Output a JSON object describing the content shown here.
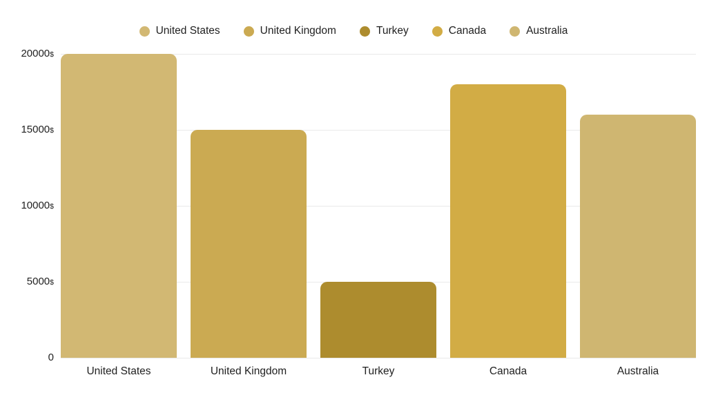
{
  "chart_data": {
    "type": "bar",
    "categories": [
      "United States",
      "United Kingdom",
      "Turkey",
      "Canada",
      "Australia"
    ],
    "values": [
      20000,
      15000,
      5000,
      18000,
      16000
    ],
    "colors": [
      "#d2b873",
      "#cbaa52",
      "#ad8c2e",
      "#d2ac45",
      "#cfb671"
    ],
    "title": "",
    "xlabel": "",
    "ylabel": "",
    "ylim": [
      0,
      20000
    ],
    "yticks": [
      {
        "value": 20000,
        "label": "20000",
        "suffix": "$"
      },
      {
        "value": 15000,
        "label": "15000",
        "suffix": "$"
      },
      {
        "value": 10000,
        "label": "10000",
        "suffix": "$"
      },
      {
        "value": 5000,
        "label": "5000",
        "suffix": "$"
      },
      {
        "value": 0,
        "label": "0",
        "suffix": ""
      }
    ],
    "grid": true,
    "legend_position": "top",
    "legend_entries": [
      "United States",
      "United Kingdom",
      "Turkey",
      "Canada",
      "Australia"
    ]
  },
  "colors": {
    "background": "#ffffff",
    "grid_line": "#e9e9e9",
    "text": "#212121"
  }
}
